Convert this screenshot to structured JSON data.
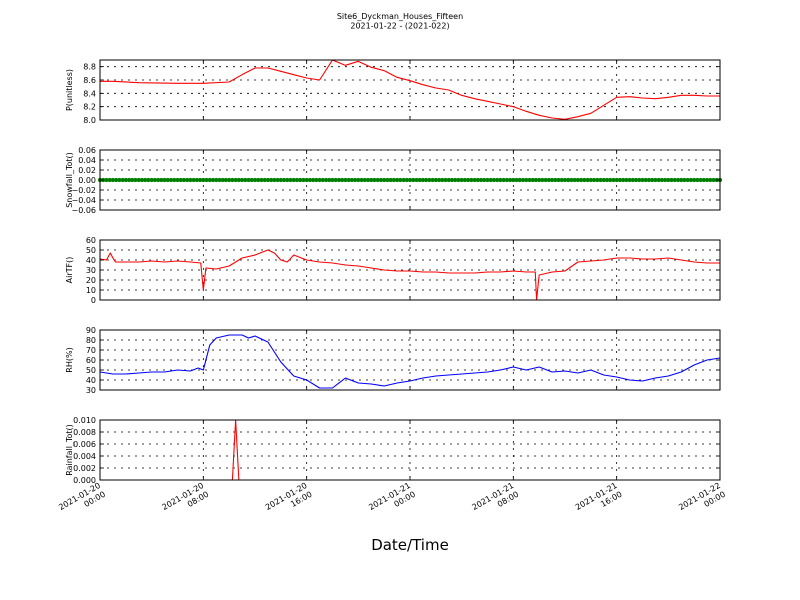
{
  "figure": {
    "title": "Site6_Dyckman_Houses_Fifteen",
    "subtitle": "2021-01-22 - (2021-022)",
    "xlabel": "Date/Time"
  },
  "chart_data": [
    {
      "type": "line",
      "ylabel": "P(unitless)",
      "ylim": [
        8.0,
        8.9
      ],
      "yticks": [
        "8.0",
        "8.2",
        "8.4",
        "8.6",
        "8.8"
      ],
      "ytick_values": [
        8.0,
        8.2,
        8.4,
        8.6,
        8.8
      ],
      "xlim": [
        "2021-01-20 00:00",
        "2021-01-22 00:00"
      ],
      "grid": true,
      "color": "#ff0000",
      "x": [
        0,
        1,
        3,
        6,
        8,
        10,
        11,
        12,
        13,
        14,
        15,
        16,
        17,
        18,
        19,
        20,
        21,
        22,
        23,
        24,
        25,
        26,
        27,
        28,
        29,
        30,
        31,
        32,
        33,
        34,
        35,
        36,
        37,
        38,
        39,
        40,
        41,
        42,
        43,
        44,
        45,
        46,
        47,
        48
      ],
      "y": [
        8.58,
        8.58,
        8.56,
        8.55,
        8.55,
        8.57,
        8.68,
        8.78,
        8.78,
        8.73,
        8.68,
        8.63,
        8.6,
        8.9,
        8.82,
        8.88,
        8.79,
        8.74,
        8.64,
        8.59,
        8.53,
        8.48,
        8.45,
        8.37,
        8.32,
        8.28,
        8.24,
        8.2,
        8.13,
        8.07,
        8.03,
        8.01,
        8.05,
        8.1,
        8.22,
        8.34,
        8.35,
        8.33,
        8.32,
        8.34,
        8.37,
        8.37,
        8.36,
        8.36
      ]
    },
    {
      "type": "scatter",
      "ylabel": "Snowfall_Tot()",
      "ylim": [
        -0.06,
        0.06
      ],
      "yticks": [
        "−0.06",
        "−0.04",
        "−0.02",
        "0.00",
        "0.02",
        "0.04",
        "0.06"
      ],
      "ytick_values": [
        -0.06,
        -0.04,
        -0.02,
        0.0,
        0.02,
        0.04,
        0.06
      ],
      "xlim": [
        "2021-01-20 00:00",
        "2021-01-22 00:00"
      ],
      "grid": true,
      "color": "#008000",
      "constant_value": 0.0,
      "interval_minutes": 15
    },
    {
      "type": "line",
      "ylabel": "AirTF()",
      "ylim": [
        0,
        60
      ],
      "yticks": [
        "0",
        "10",
        "20",
        "30",
        "40",
        "50",
        "60"
      ],
      "ytick_values": [
        0,
        10,
        20,
        30,
        40,
        50,
        60
      ],
      "xlim": [
        "2021-01-20 00:00",
        "2021-01-22 00:00"
      ],
      "grid": true,
      "color": "#ff0000",
      "x": [
        0,
        0.5,
        0.8,
        1.0,
        1.2,
        2,
        3,
        4,
        5,
        6,
        7,
        7.8,
        8.0,
        8.2,
        9,
        10,
        11,
        12,
        13,
        13.5,
        14,
        14.5,
        15,
        16,
        17,
        18,
        19,
        20,
        21,
        22,
        23,
        24,
        25,
        26,
        27,
        28,
        29,
        30,
        31,
        32,
        33,
        33.7,
        33.8,
        34,
        35,
        36,
        37,
        38,
        39,
        40,
        41,
        42,
        43,
        44,
        45,
        46,
        47,
        48
      ],
      "y": [
        41,
        40,
        47,
        42,
        38,
        38,
        38,
        39,
        38,
        39,
        38,
        37,
        10,
        32,
        31,
        34,
        42,
        45,
        50,
        47,
        40,
        38,
        45,
        40,
        38,
        37,
        35,
        34,
        32,
        30,
        29,
        29,
        28,
        28,
        27,
        27,
        27,
        28,
        28,
        29,
        28,
        28,
        0,
        25,
        28,
        29,
        38,
        39,
        40,
        42,
        42,
        41,
        41,
        42,
        40,
        38,
        37,
        37
      ]
    },
    {
      "type": "line",
      "ylabel": "RH(%)",
      "ylim": [
        30,
        90
      ],
      "yticks": [
        "30",
        "40",
        "50",
        "60",
        "70",
        "80",
        "90"
      ],
      "ytick_values": [
        30,
        40,
        50,
        60,
        70,
        80,
        90
      ],
      "xlim": [
        "2021-01-20 00:00",
        "2021-01-22 00:00"
      ],
      "grid": true,
      "color": "#0000ff",
      "x": [
        0,
        1,
        2,
        3,
        4,
        5,
        6,
        7,
        7.6,
        8,
        8.5,
        9,
        10,
        11,
        11.5,
        12,
        13,
        14,
        15,
        16,
        17,
        18,
        19,
        20,
        21,
        22,
        23,
        24,
        25,
        26,
        27,
        28,
        29,
        30,
        31,
        32,
        33,
        34,
        35,
        36,
        37,
        38,
        39,
        40,
        41,
        42,
        43,
        44,
        45,
        46,
        47,
        48
      ],
      "y": [
        48,
        46,
        46,
        47,
        48,
        48,
        50,
        49,
        52,
        50,
        75,
        82,
        85,
        85,
        82,
        84,
        78,
        58,
        44,
        40,
        32,
        32,
        42,
        37,
        36,
        34,
        37,
        39,
        42,
        44,
        45,
        46,
        47,
        48,
        50,
        53,
        50,
        53,
        48,
        49,
        47,
        50,
        45,
        43,
        40,
        39,
        42,
        44,
        48,
        55,
        60,
        62
      ]
    },
    {
      "type": "line",
      "ylabel": "Rainfall_Tot()",
      "ylim": [
        0.0,
        0.01
      ],
      "yticks": [
        "0.000",
        "0.002",
        "0.004",
        "0.006",
        "0.008",
        "0.010"
      ],
      "ytick_values": [
        0.0,
        0.002,
        0.004,
        0.006,
        0.008,
        0.01
      ],
      "xlim": [
        "2021-01-20 00:00",
        "2021-01-22 00:00"
      ],
      "grid": true,
      "color": "#ff0000",
      "x": [
        0,
        10.25,
        10.5,
        10.75,
        48
      ],
      "y": [
        0,
        0,
        0.01,
        0,
        0
      ]
    }
  ],
  "xticks": [
    {
      "line1": "2021-01-20",
      "line2": "00:00",
      "hours": 0
    },
    {
      "line1": "2021-01-20",
      "line2": "08:00",
      "hours": 8
    },
    {
      "line1": "2021-01-20",
      "line2": "16:00",
      "hours": 16
    },
    {
      "line1": "2021-01-21",
      "line2": "00:00",
      "hours": 24
    },
    {
      "line1": "2021-01-21",
      "line2": "08:00",
      "hours": 32
    },
    {
      "line1": "2021-01-21",
      "line2": "16:00",
      "hours": 40
    },
    {
      "line1": "2021-01-22",
      "line2": "00:00",
      "hours": 48
    }
  ]
}
